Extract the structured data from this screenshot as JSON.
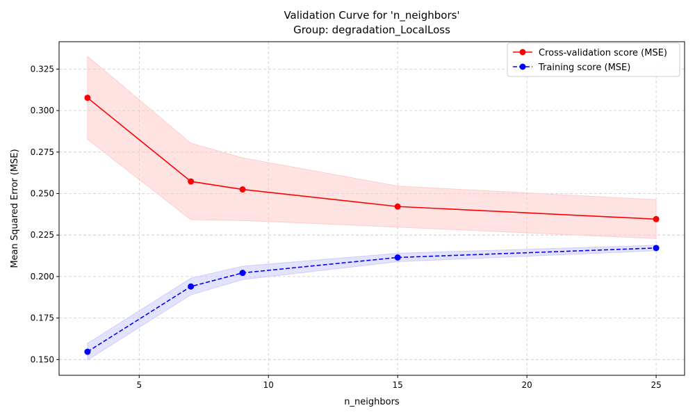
{
  "chart_data": {
    "type": "line",
    "title": "Validation Curve for 'n_neighbors'",
    "subtitle": "Group: degradation_LocalLoss",
    "xlabel": "n_neighbors",
    "ylabel": "Mean Squared Error (MSE)",
    "xlim": [
      1.9,
      26.1
    ],
    "ylim": [
      0.1405,
      0.3415
    ],
    "grid": true,
    "legend_position": "top-right",
    "x_ticks": [
      5,
      10,
      15,
      20,
      25
    ],
    "y_ticks": [
      0.15,
      0.175,
      0.2,
      0.225,
      0.25,
      0.275,
      0.3,
      0.325
    ],
    "x_tick_labels": [
      "5",
      "10",
      "15",
      "20",
      "25"
    ],
    "y_tick_labels": [
      "0.150",
      "0.175",
      "0.200",
      "0.225",
      "0.250",
      "0.275",
      "0.300",
      "0.325"
    ],
    "x": [
      3,
      7,
      9,
      15,
      25
    ],
    "series": [
      {
        "name": "Cross-validation score (MSE)",
        "color": "#ff0000",
        "band_color": "#ffcccc",
        "line_style": "solid",
        "values": [
          0.3077,
          0.2573,
          0.2525,
          0.2422,
          0.2346
        ],
        "band_upper": [
          0.3327,
          0.2803,
          0.2715,
          0.2545,
          0.2463
        ],
        "band_lower": [
          0.2827,
          0.2343,
          0.2338,
          0.2298,
          0.2229
        ]
      },
      {
        "name": "Training score (MSE)",
        "color": "#0000ff",
        "band_color": "#ccccff",
        "line_style": "dashed",
        "values": [
          0.1547,
          0.194,
          0.2022,
          0.2115,
          0.2172
        ],
        "band_upper": [
          0.1597,
          0.199,
          0.2062,
          0.214,
          0.2188
        ],
        "band_lower": [
          0.1497,
          0.189,
          0.1982,
          0.209,
          0.2156
        ]
      }
    ]
  }
}
